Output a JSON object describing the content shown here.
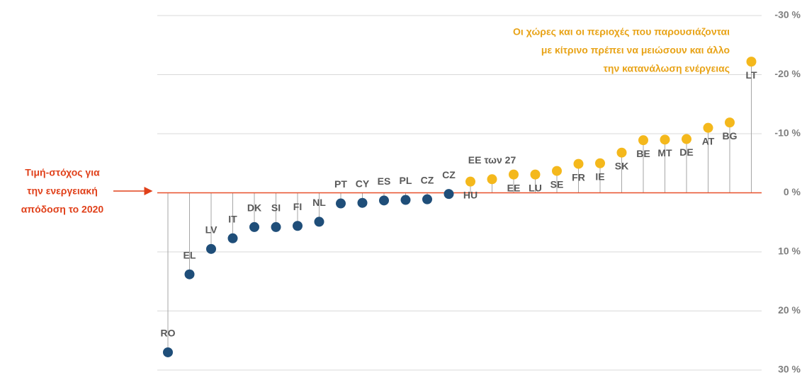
{
  "chart_data": {
    "type": "lollipop",
    "categories": [
      "RO",
      "EL",
      "LV",
      "IT",
      "DK",
      "SI",
      "FI",
      "NL",
      "PT",
      "CY",
      "ES",
      "PL",
      "CZ",
      "CZ",
      "HU",
      "EE των 27",
      "EE",
      "LU",
      "SE",
      "FR",
      "IE",
      "SK",
      "BE",
      "MT",
      "DE",
      "AT",
      "BG",
      "LT"
    ],
    "values": [
      27.0,
      13.8,
      9.5,
      7.7,
      5.8,
      5.8,
      5.6,
      4.9,
      1.8,
      1.7,
      1.3,
      1.2,
      1.1,
      0.2,
      -1.9,
      -2.3,
      -3.1,
      -3.1,
      -3.7,
      -4.9,
      -5.0,
      -6.8,
      -8.9,
      -9.0,
      -9.1,
      -11.0,
      -11.9,
      -22.2
    ],
    "point_colors": [
      "#1f4e79",
      "#1f4e79",
      "#1f4e79",
      "#1f4e79",
      "#1f4e79",
      "#1f4e79",
      "#1f4e79",
      "#1f4e79",
      "#1f4e79",
      "#1f4e79",
      "#1f4e79",
      "#1f4e79",
      "#1f4e79",
      "#1f4e79",
      "#f4b81c",
      "#f4b81c",
      "#f4b81c",
      "#f4b81c",
      "#f4b81c",
      "#f4b81c",
      "#f4b81c",
      "#f4b81c",
      "#f4b81c",
      "#f4b81c",
      "#f4b81c",
      "#f4b81c",
      "#f4b81c",
      "#f4b81c"
    ],
    "ylim": [
      -30,
      30
    ],
    "y_inverted": true,
    "yticks": [
      {
        "value": -30,
        "label": "-30 %"
      },
      {
        "value": -20,
        "label": "-20 %"
      },
      {
        "value": -10,
        "label": "-10 %"
      },
      {
        "value": 0,
        "label": "0 %"
      },
      {
        "value": 10,
        "label": "10 %"
      },
      {
        "value": 20,
        "label": "20 %"
      },
      {
        "value": 30,
        "label": "30 %"
      }
    ],
    "grid": true,
    "annotation": [
      "Οι χώρες και οι περιοχές που παρουσιάζονται",
      "με κίτρινο πρέπει να μειώσουν και άλλο",
      "την κατανάλωση ενέργειας"
    ],
    "target_label": [
      "Τιμή-στόχος για",
      "την ενεργειακή",
      "απόδοση το 2020"
    ]
  }
}
